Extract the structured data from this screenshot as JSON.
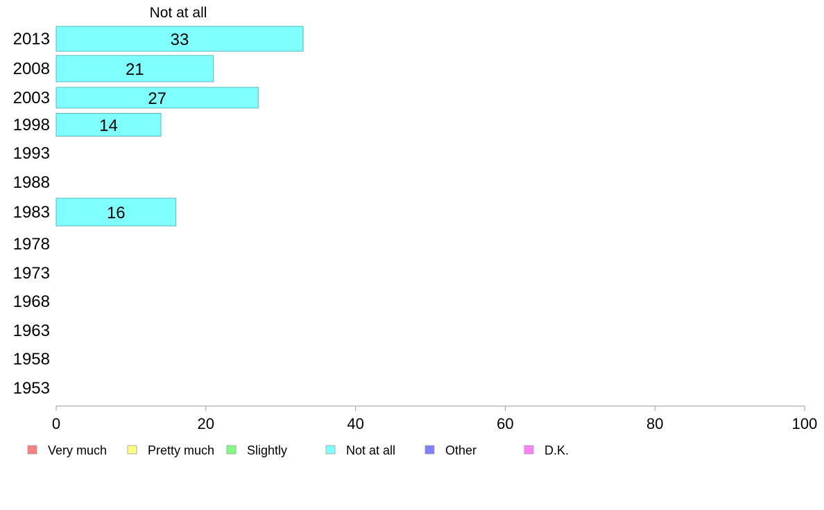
{
  "chart_data": {
    "type": "bar",
    "orientation": "horizontal",
    "header": "Not at all",
    "categories": [
      "2013",
      "2008",
      "2003",
      "1998",
      "1993",
      "1988",
      "1983",
      "1978",
      "1973",
      "1968",
      "1963",
      "1958",
      "1953"
    ],
    "series": [
      {
        "name": "Not at all",
        "color": "#80ffff",
        "values": [
          33,
          21,
          27,
          14,
          null,
          null,
          16,
          null,
          null,
          null,
          null,
          null,
          null
        ]
      }
    ],
    "xlim": [
      0,
      100
    ],
    "xticks": [
      "0",
      "20",
      "40",
      "60",
      "80",
      "100"
    ],
    "xlabel": "",
    "ylabel": "",
    "title": "",
    "grid": false,
    "legend_position": "bottom",
    "legend": [
      {
        "label": "Very much",
        "color": "#ff8080"
      },
      {
        "label": "Pretty much",
        "color": "#ffff80"
      },
      {
        "label": "Slightly",
        "color": "#80ff80"
      },
      {
        "label": "Not at all",
        "color": "#80ffff"
      },
      {
        "label": "Other",
        "color": "#8080ff"
      },
      {
        "label": "D.K.",
        "color": "#ff80ff"
      }
    ]
  }
}
